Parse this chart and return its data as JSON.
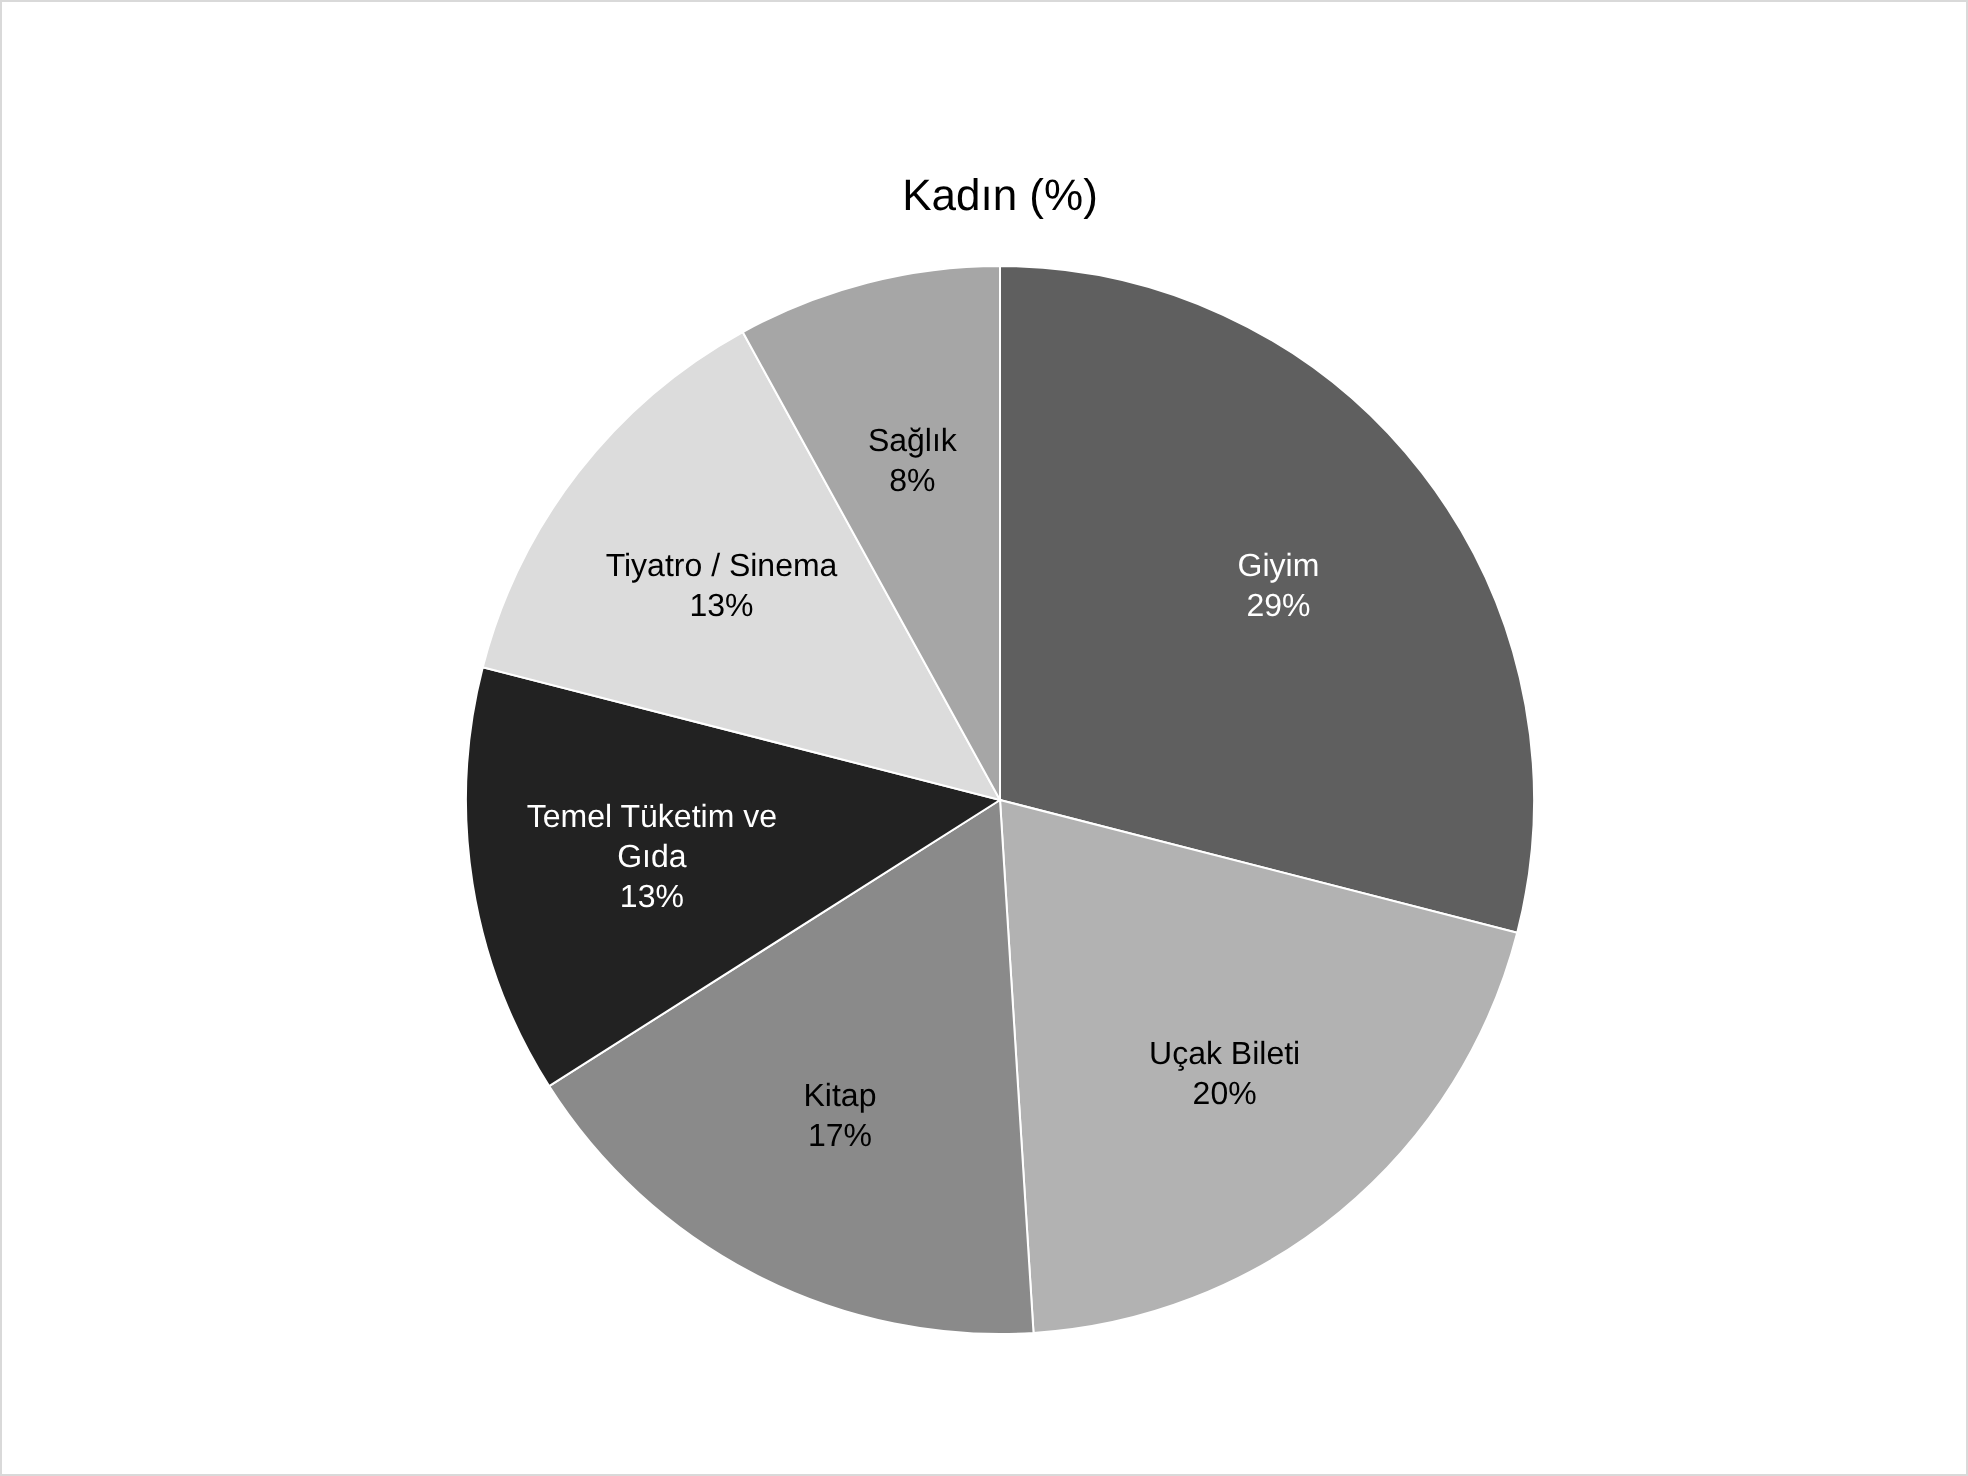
{
  "chart_data": {
    "type": "pie",
    "title": "Kadın (%)",
    "categories": [
      "Giyim",
      "Uçak Bileti",
      "Kitap",
      "Temel Tüketim ve Gıda",
      "Tiyatro / Sinema",
      "Sağlık"
    ],
    "values": [
      29,
      20,
      17,
      13,
      13,
      8
    ],
    "colors": [
      "#5f5f5f",
      "#b2b2b2",
      "#8a8a8a",
      "#222222",
      "#dcdcdc",
      "#a6a6a6"
    ],
    "value_labels": [
      "29%",
      "20%",
      "17%",
      "13%",
      "13%",
      "8%"
    ]
  }
}
